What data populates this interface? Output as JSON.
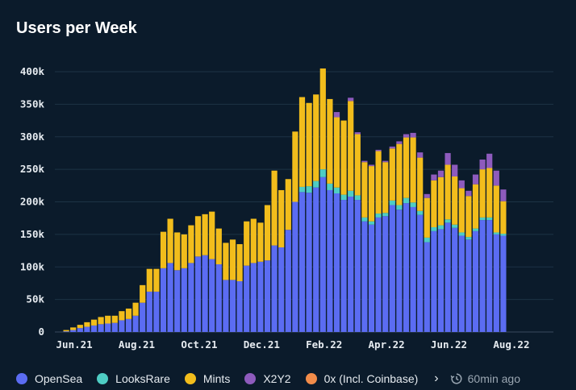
{
  "title": "Users per Week",
  "refresh": {
    "label": "60min ago",
    "icon": "clock-refresh-icon"
  },
  "legend": {
    "next_icon": "chevron-right-icon",
    "items": [
      {
        "label": "OpenSea",
        "color": "#5b6cf2"
      },
      {
        "label": "LooksRare",
        "color": "#4ecdc4"
      },
      {
        "label": "Mints",
        "color": "#f2bd1c"
      },
      {
        "label": "X2Y2",
        "color": "#8e5bbd"
      },
      {
        "label": "0x (Incl. Coinbase)",
        "color": "#f28c4a"
      }
    ]
  },
  "chart_data": {
    "type": "bar",
    "stacked": true,
    "title": "Users per Week",
    "xlabel": "",
    "ylabel": "",
    "ylim": [
      0,
      400000
    ],
    "yticks": [
      0,
      50000,
      100000,
      150000,
      200000,
      250000,
      300000,
      350000,
      400000
    ],
    "ytick_labels": [
      "0",
      "50k",
      "100k",
      "150k",
      "200k",
      "250k",
      "300k",
      "350k",
      "400k"
    ],
    "xtick_labels": [
      {
        "label": "Jun.21",
        "index": 1
      },
      {
        "label": "Aug.21",
        "index": 10
      },
      {
        "label": "Oct.21",
        "index": 19
      },
      {
        "label": "Dec.21",
        "index": 28
      },
      {
        "label": "Feb.22",
        "index": 37
      },
      {
        "label": "Apr.22",
        "index": 46
      },
      {
        "label": "Jun.22",
        "index": 55
      },
      {
        "label": "Aug.22",
        "index": 64
      }
    ],
    "series": [
      {
        "name": "OpenSea",
        "color": "#5b6cf2",
        "values": [
          0,
          1000,
          3000,
          6000,
          8000,
          10000,
          12000,
          13000,
          14000,
          18000,
          20000,
          25000,
          45000,
          62000,
          62000,
          98000,
          106000,
          95000,
          98000,
          106000,
          116000,
          118000,
          112000,
          104000,
          80000,
          80000,
          78000,
          102000,
          106000,
          108000,
          110000,
          133000,
          130000,
          157000,
          200000,
          215000,
          214000,
          222000,
          238000,
          218000,
          213000,
          203000,
          208000,
          203000,
          170000,
          165000,
          176000,
          178000,
          195000,
          188000,
          198000,
          192000,
          180000,
          138000,
          155000,
          158000,
          168000,
          160000,
          148000,
          142000,
          155000,
          172000,
          172000,
          150000,
          148000
        ]
      },
      {
        "name": "LooksRare",
        "color": "#4ecdc4",
        "values": [
          0,
          0,
          0,
          0,
          0,
          0,
          0,
          0,
          0,
          0,
          0,
          0,
          0,
          0,
          0,
          0,
          0,
          0,
          0,
          0,
          0,
          0,
          0,
          0,
          0,
          0,
          0,
          0,
          0,
          0,
          0,
          0,
          0,
          0,
          0,
          8000,
          10000,
          10000,
          12000,
          10000,
          9000,
          8000,
          9000,
          7000,
          6000,
          5000,
          6000,
          5000,
          7000,
          7000,
          8000,
          7000,
          6000,
          7000,
          6000,
          6000,
          5000,
          5000,
          5000,
          4000,
          4000,
          4000,
          4000,
          3000,
          3000
        ]
      },
      {
        "name": "Mints",
        "color": "#f2bd1c",
        "values": [
          0,
          2000,
          4000,
          5000,
          7000,
          9000,
          11000,
          12000,
          11000,
          14000,
          16000,
          20000,
          27000,
          35000,
          35000,
          56000,
          68000,
          58000,
          52000,
          58000,
          62000,
          63000,
          73000,
          55000,
          57000,
          62000,
          57000,
          68000,
          68000,
          60000,
          85000,
          115000,
          88000,
          78000,
          108000,
          138000,
          128000,
          133000,
          155000,
          130000,
          108000,
          114000,
          138000,
          94000,
          85000,
          85000,
          96000,
          78000,
          80000,
          94000,
          93000,
          100000,
          82000,
          61000,
          72000,
          74000,
          84000,
          74000,
          68000,
          63000,
          68000,
          74000,
          76000,
          72000,
          50000
        ]
      },
      {
        "name": "X2Y2",
        "color": "#8e5bbd",
        "values": [
          0,
          0,
          0,
          0,
          0,
          0,
          0,
          0,
          0,
          0,
          0,
          0,
          0,
          0,
          0,
          0,
          0,
          0,
          0,
          0,
          0,
          0,
          0,
          0,
          0,
          0,
          0,
          0,
          0,
          0,
          0,
          0,
          0,
          0,
          0,
          0,
          0,
          0,
          0,
          0,
          8000,
          0,
          5000,
          3000,
          2000,
          2000,
          2000,
          2000,
          3000,
          4000,
          5000,
          7000,
          8000,
          6000,
          9000,
          10000,
          18000,
          18000,
          12000,
          8000,
          15000,
          15000,
          22000,
          23000,
          18000
        ]
      },
      {
        "name": "0x (Incl. Coinbase)",
        "color": "#f28c4a",
        "values": [
          0,
          0,
          0,
          0,
          0,
          0,
          0,
          0,
          0,
          0,
          0,
          0,
          0,
          0,
          0,
          0,
          0,
          0,
          0,
          0,
          0,
          0,
          0,
          0,
          0,
          0,
          0,
          0,
          0,
          0,
          0,
          0,
          0,
          0,
          0,
          0,
          0,
          0,
          0,
          0,
          0,
          0,
          0,
          0,
          0,
          0,
          0,
          0,
          0,
          0,
          0,
          0,
          0,
          0,
          0,
          0,
          0,
          0,
          0,
          0,
          0,
          0,
          0,
          0,
          0
        ]
      }
    ]
  }
}
